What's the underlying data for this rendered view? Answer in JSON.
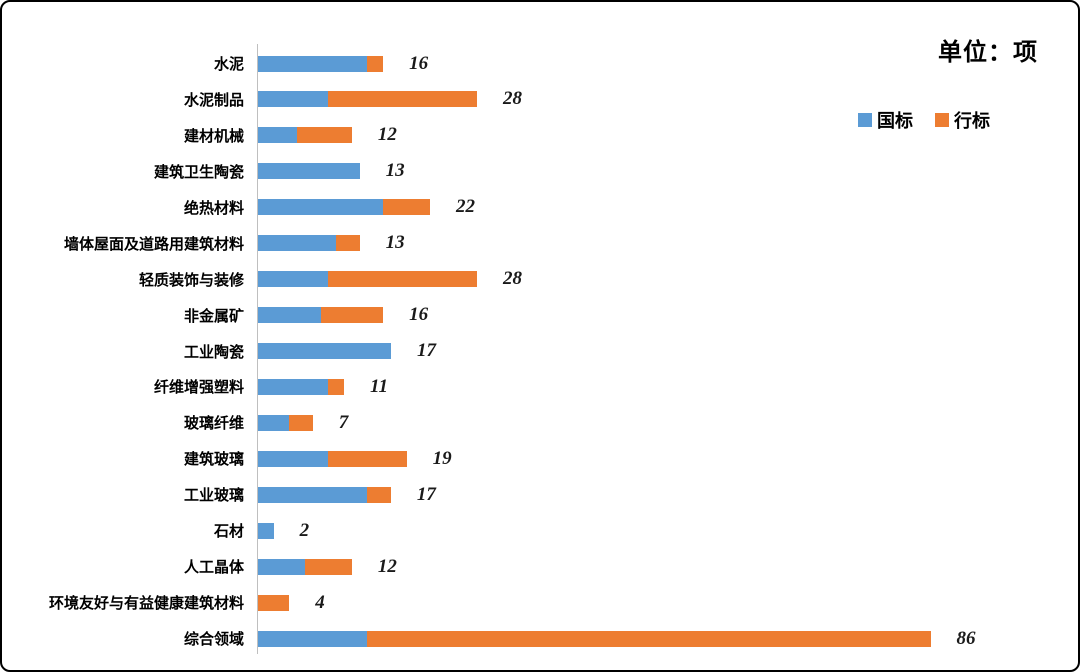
{
  "unit_title": "单位：项",
  "legend": [
    {
      "label": "国标",
      "color": "#5B9BD5"
    },
    {
      "label": "行标",
      "color": "#ED7D31"
    }
  ],
  "colors": {
    "gb_blue": "#5B9BD5",
    "hb_orange": "#ED7D31",
    "axis_line": "#BFBFBF"
  },
  "chart_data": {
    "type": "bar",
    "orientation": "horizontal",
    "stacked": true,
    "unit_label": "单位：项",
    "legend_position": "right-top",
    "value_axis_visible": false,
    "categories": [
      "水泥",
      "水泥制品",
      "建材机械",
      "建筑卫生陶瓷",
      "绝热材料",
      "墙体屋面及道路用建筑材料",
      "轻质装饰与装修",
      "非金属矿",
      "工业陶瓷",
      "纤维增强塑料",
      "玻璃纤维",
      "建筑玻璃",
      "工业玻璃",
      "石材",
      "人工晶体",
      "环境友好与有益健康建筑材料",
      "综合领域"
    ],
    "series": [
      {
        "name": "国标",
        "color": "#5B9BD5",
        "values": [
          14,
          9,
          5,
          13,
          16,
          10,
          9,
          8,
          17,
          9,
          4,
          9,
          14,
          2,
          6,
          0,
          14
        ]
      },
      {
        "name": "行标",
        "color": "#ED7D31",
        "values": [
          2,
          19,
          7,
          0,
          6,
          3,
          19,
          8,
          0,
          2,
          3,
          10,
          3,
          0,
          6,
          4,
          72
        ]
      }
    ],
    "totals": [
      16,
      28,
      12,
      13,
      22,
      13,
      28,
      16,
      17,
      11,
      7,
      19,
      17,
      2,
      12,
      4,
      86
    ],
    "xlim": [
      0,
      86
    ]
  }
}
